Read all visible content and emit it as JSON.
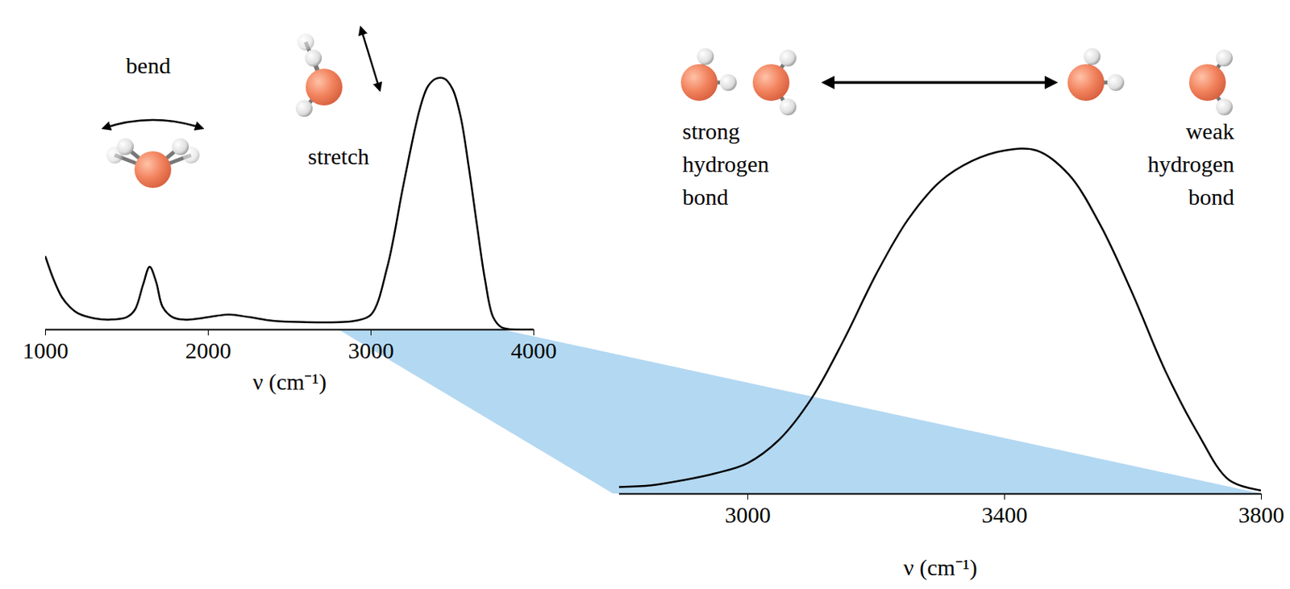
{
  "chart_data": [
    {
      "type": "line",
      "x_label": "ν (cm⁻¹)",
      "xlim": [
        1000,
        4000
      ],
      "xticks": [
        1000,
        2000,
        3000,
        4000
      ],
      "ylim": [
        0,
        1.05
      ],
      "tick_labels": "x",
      "color": "#000000",
      "annotations": [
        "bend",
        "stretch"
      ],
      "x": [
        1000,
        1050,
        1100,
        1150,
        1200,
        1300,
        1400,
        1500,
        1550,
        1600,
        1640,
        1680,
        1720,
        1780,
        1850,
        1950,
        2050,
        2130,
        2250,
        2400,
        2600,
        2800,
        2900,
        3000,
        3100,
        3200,
        3300,
        3350,
        3400,
        3450,
        3500,
        3550,
        3600,
        3650,
        3700,
        3750,
        3800,
        3900,
        4000
      ],
      "values": [
        0.29,
        0.2,
        0.13,
        0.09,
        0.065,
        0.045,
        0.04,
        0.05,
        0.08,
        0.18,
        0.25,
        0.19,
        0.09,
        0.05,
        0.04,
        0.045,
        0.055,
        0.06,
        0.05,
        0.035,
        0.03,
        0.03,
        0.035,
        0.06,
        0.25,
        0.58,
        0.88,
        0.97,
        1.0,
        1.0,
        0.96,
        0.85,
        0.65,
        0.42,
        0.2,
        0.05,
        0.01,
        0.0,
        0.0
      ]
    },
    {
      "type": "line",
      "x_label": "ν (cm⁻¹)",
      "xlim": [
        2800,
        3800
      ],
      "xticks": [
        3000,
        3400,
        3800
      ],
      "ylim": [
        0,
        1.05
      ],
      "tick_labels": "x",
      "color": "#000000",
      "annotations": [
        "strong hydrogen bond",
        "weak hydrogen bond"
      ],
      "x": [
        2800,
        2850,
        2900,
        2950,
        3000,
        3050,
        3100,
        3150,
        3200,
        3250,
        3300,
        3350,
        3400,
        3450,
        3500,
        3550,
        3600,
        3650,
        3700,
        3750,
        3800
      ],
      "values": [
        0.02,
        0.025,
        0.04,
        0.06,
        0.09,
        0.16,
        0.28,
        0.45,
        0.64,
        0.8,
        0.91,
        0.97,
        1.0,
        1.0,
        0.93,
        0.78,
        0.58,
        0.36,
        0.18,
        0.04,
        0.01
      ]
    }
  ]
}
